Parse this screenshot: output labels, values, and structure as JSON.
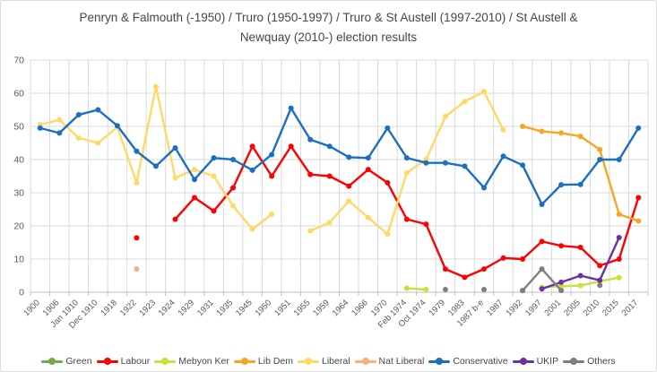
{
  "title": "Penryn & Falmouth (-1950) / Truro (1950-1997) / Truro & St Austell (1997-2010) / St Austell & Newquay (2010-) election results",
  "chart_data": {
    "type": "line",
    "title": "Penryn & Falmouth (-1950) / Truro (1950-1997) / Truro & St Austell (1997-2010) / St Austell & Newquay (2010-) election results",
    "xlabel": "",
    "ylabel": "",
    "grid": true,
    "legend_position": "bottom",
    "y_axis": {
      "min": 0,
      "max": 70,
      "step": 10
    },
    "categories": [
      "1900",
      "1906",
      "Jan 1910",
      "Dec 1910",
      "1918",
      "1922",
      "1923",
      "1924",
      "1929",
      "1931",
      "1935",
      "1945",
      "1950",
      "1951",
      "1955",
      "1959",
      "1964",
      "1966",
      "1970",
      "Feb 1974",
      "Oct 1974",
      "1979",
      "1983",
      "1987 b-e",
      "1987",
      "1992",
      "1997",
      "2001",
      "2005",
      "2010",
      "2015",
      "2017"
    ],
    "series": [
      {
        "name": "Green",
        "color": "#70AD47",
        "values": [
          null,
          null,
          null,
          null,
          null,
          null,
          null,
          null,
          null,
          null,
          null,
          null,
          null,
          null,
          null,
          null,
          null,
          null,
          null,
          null,
          null,
          null,
          null,
          null,
          null,
          0.5,
          null,
          null,
          null,
          null,
          null,
          null
        ]
      },
      {
        "name": "Labour",
        "color": "#FF0000",
        "values": [
          null,
          null,
          null,
          null,
          null,
          16.4,
          null,
          22,
          28.5,
          24.5,
          31.5,
          44,
          35,
          44,
          35.5,
          35,
          32,
          37,
          33,
          22,
          20.5,
          7,
          4.5,
          7,
          10.3,
          10,
          15.3,
          14,
          13.5,
          8,
          10,
          28.5
        ]
      },
      {
        "name": "Mebyon Ker",
        "color": "#C6E239",
        "values": [
          null,
          null,
          null,
          null,
          null,
          null,
          null,
          null,
          null,
          null,
          null,
          null,
          null,
          null,
          null,
          null,
          null,
          null,
          null,
          1.2,
          0.8,
          null,
          null,
          null,
          null,
          null,
          1.5,
          1.8,
          2,
          3.3,
          4.4,
          null
        ]
      },
      {
        "name": "Lib Dem",
        "color": "#F5A623",
        "values": [
          null,
          null,
          null,
          null,
          null,
          null,
          null,
          null,
          null,
          null,
          null,
          null,
          null,
          null,
          null,
          null,
          null,
          null,
          null,
          null,
          null,
          null,
          null,
          null,
          null,
          50,
          48.5,
          48,
          47,
          43,
          23.5,
          21.5
        ]
      },
      {
        "name": "Liberal",
        "color": "#FFD966",
        "values": [
          50.5,
          52,
          46.5,
          45,
          49.8,
          33,
          62,
          34.5,
          37,
          35,
          26,
          19,
          23.5,
          null,
          18.5,
          21,
          27.5,
          22.5,
          17.5,
          36,
          40,
          53,
          57.5,
          60.5,
          49,
          null,
          null,
          null,
          null,
          null,
          null,
          null
        ]
      },
      {
        "name": "Nat Liberal",
        "color": "#F4B183",
        "values": [
          null,
          null,
          null,
          null,
          null,
          7,
          null,
          null,
          null,
          null,
          null,
          null,
          null,
          null,
          null,
          null,
          null,
          null,
          null,
          null,
          null,
          null,
          null,
          null,
          null,
          null,
          null,
          null,
          null,
          null,
          null,
          null
        ]
      },
      {
        "name": "Conservative",
        "color": "#1B6FC1",
        "values": [
          49.5,
          48,
          53.5,
          55,
          50.2,
          42.5,
          38,
          43.5,
          34,
          40.5,
          40,
          36.8,
          41.5,
          55.5,
          46,
          44,
          40.7,
          40.5,
          49.5,
          40.5,
          39,
          39,
          38,
          31.5,
          41,
          38.3,
          26.5,
          32.4,
          32.5,
          40,
          40,
          49.5
        ]
      },
      {
        "name": "UKIP",
        "color": "#7030A0",
        "values": [
          null,
          null,
          null,
          null,
          null,
          null,
          null,
          null,
          null,
          null,
          null,
          null,
          null,
          null,
          null,
          null,
          null,
          null,
          null,
          null,
          null,
          null,
          null,
          null,
          null,
          null,
          1,
          3,
          5,
          3.6,
          16.5,
          null
        ]
      },
      {
        "name": "Others",
        "color": "#7F7F7F",
        "values": [
          null,
          null,
          null,
          null,
          null,
          null,
          null,
          null,
          null,
          null,
          null,
          null,
          null,
          null,
          null,
          null,
          null,
          null,
          null,
          null,
          null,
          0.8,
          null,
          0.8,
          null,
          0.5,
          7,
          0.5,
          null,
          2.1,
          null,
          null
        ]
      }
    ]
  },
  "colors": {
    "gridline": "#D9D9D9",
    "axis_line": "#BFBFBF",
    "tick_label": "#595959",
    "title_text": "#464646"
  }
}
